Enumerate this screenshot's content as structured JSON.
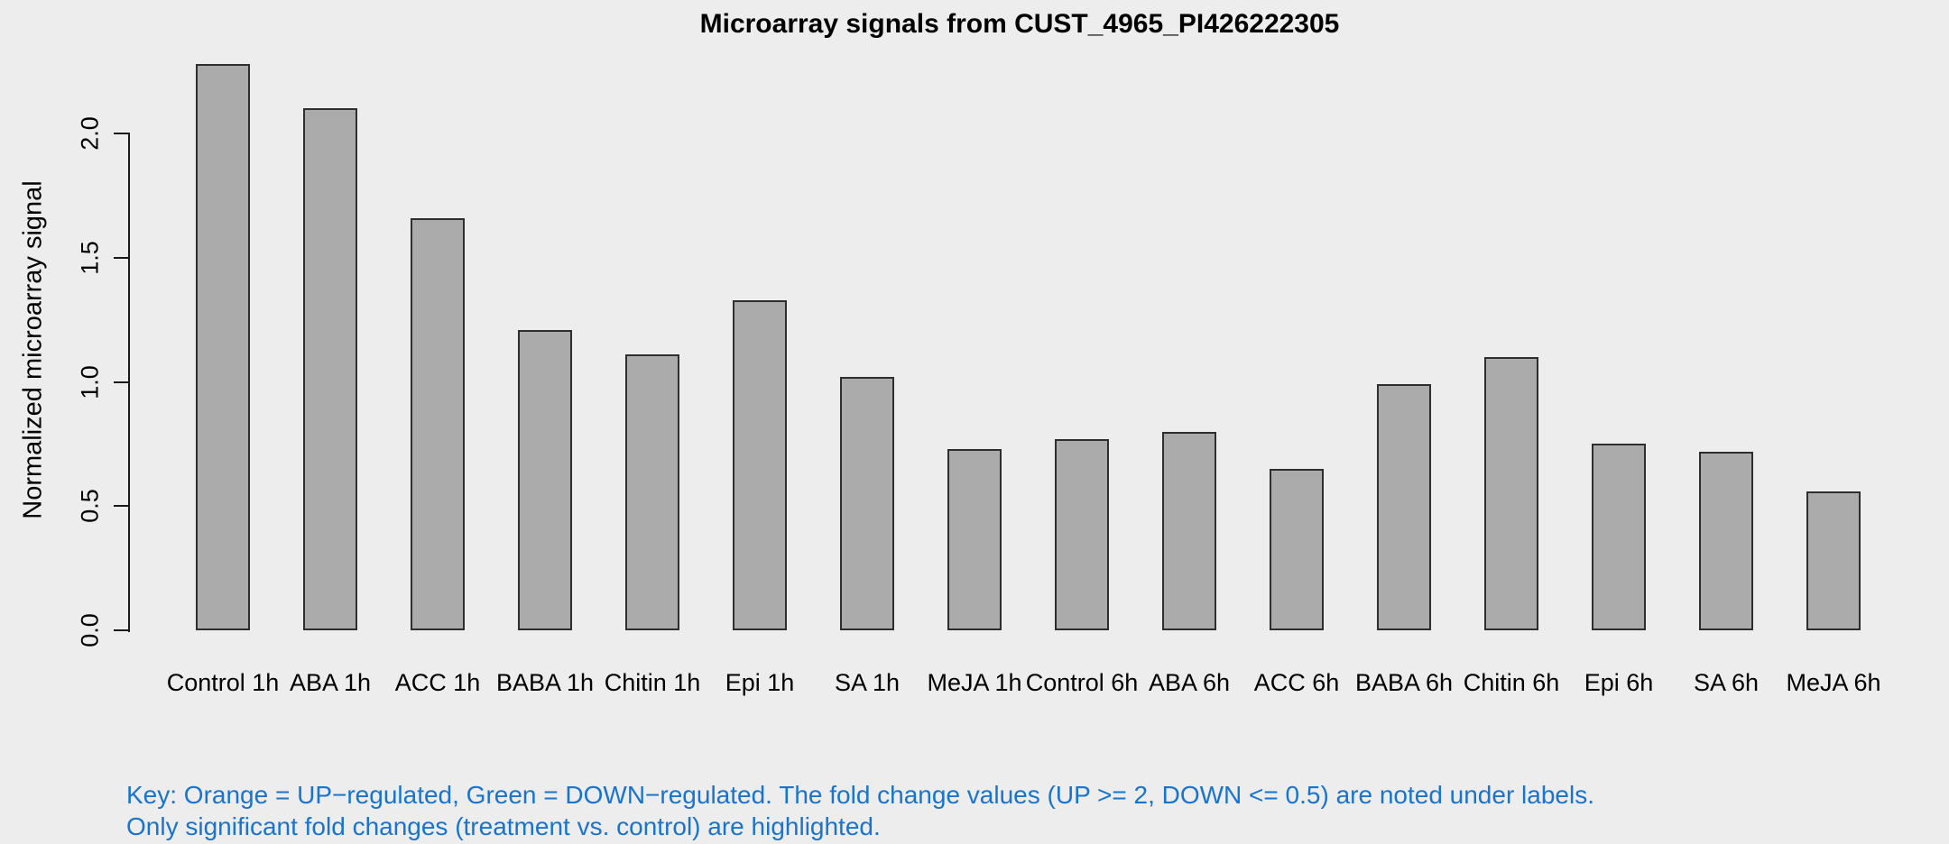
{
  "chart_data": {
    "type": "bar",
    "title": "Microarray signals from CUST_4965_PI426222305",
    "xlabel": "",
    "ylabel": "Normalized microarray signal",
    "categories": [
      "Control 1h",
      "ABA 1h",
      "ACC 1h",
      "BABA 1h",
      "Chitin 1h",
      "Epi 1h",
      "SA 1h",
      "MeJA 1h",
      "Control 6h",
      "ABA 6h",
      "ACC 6h",
      "BABA 6h",
      "Chitin 6h",
      "Epi 6h",
      "SA 6h",
      "MeJA 6h"
    ],
    "values": [
      2.28,
      2.1,
      1.66,
      1.21,
      1.11,
      1.33,
      1.02,
      0.73,
      0.77,
      0.8,
      0.65,
      0.99,
      1.1,
      0.75,
      0.72,
      0.56
    ],
    "ylim": [
      0.0,
      2.0
    ],
    "yticks": [
      0.0,
      0.5,
      1.0,
      1.5,
      2.0
    ],
    "grid": false,
    "legend": "none",
    "background": "#EDEDED",
    "bar_fill": "#ABABAB",
    "bar_border": "#2E2E2E",
    "axis_color": "#1A1A1A"
  },
  "footnote": {
    "line1": "Key: Orange = UP−regulated, Green = DOWN−regulated. The fold change values (UP >= 2, DOWN <= 0.5) are noted under labels.",
    "line2": "Only significant fold changes (treatment vs. control) are highlighted.",
    "color": "#1874CD"
  }
}
